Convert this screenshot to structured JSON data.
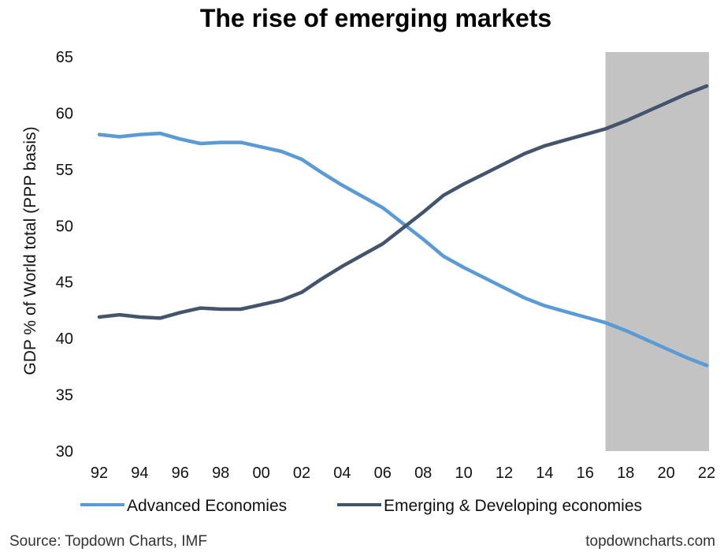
{
  "chart_data": {
    "type": "line",
    "title": "The rise of emerging markets",
    "ylabel": "GDP % of World total (PPP basis)",
    "xlabel": "",
    "ylim": [
      30,
      65
    ],
    "yticks": [
      "30",
      "35",
      "40",
      "45",
      "50",
      "55",
      "60",
      "65"
    ],
    "xlim": [
      1992,
      2022
    ],
    "xticks": [
      {
        "year": 1992,
        "label": "92"
      },
      {
        "year": 1994,
        "label": "94"
      },
      {
        "year": 1996,
        "label": "96"
      },
      {
        "year": 1998,
        "label": "98"
      },
      {
        "year": 2000,
        "label": "00"
      },
      {
        "year": 2002,
        "label": "02"
      },
      {
        "year": 2004,
        "label": "04"
      },
      {
        "year": 2006,
        "label": "06"
      },
      {
        "year": 2008,
        "label": "08"
      },
      {
        "year": 2010,
        "label": "10"
      },
      {
        "year": 2012,
        "label": "12"
      },
      {
        "year": 2014,
        "label": "14"
      },
      {
        "year": 2016,
        "label": "16"
      },
      {
        "year": 2018,
        "label": "18"
      },
      {
        "year": 2020,
        "label": "20"
      },
      {
        "year": 2022,
        "label": "22"
      }
    ],
    "x": [
      1992,
      1993,
      1994,
      1995,
      1996,
      1997,
      1998,
      1999,
      2000,
      2001,
      2002,
      2003,
      2004,
      2005,
      2006,
      2007,
      2008,
      2009,
      2010,
      2011,
      2012,
      2013,
      2014,
      2015,
      2016,
      2017,
      2018,
      2019,
      2020,
      2021,
      2022
    ],
    "series": [
      {
        "name": "Advanced Economies",
        "color": "#5b9bd5",
        "values": [
          58.1,
          57.9,
          58.1,
          58.2,
          57.7,
          57.3,
          57.4,
          57.4,
          57.0,
          56.6,
          55.9,
          54.7,
          53.6,
          52.6,
          51.6,
          50.2,
          48.8,
          47.3,
          46.3,
          45.4,
          44.5,
          43.6,
          42.9,
          42.4,
          41.9,
          41.4,
          40.7,
          39.9,
          39.1,
          38.3,
          37.6
        ]
      },
      {
        "name": "Emerging & Developing economies",
        "color": "#44546a",
        "values": [
          41.9,
          42.1,
          41.9,
          41.8,
          42.3,
          42.7,
          42.6,
          42.6,
          43.0,
          43.4,
          44.1,
          45.3,
          46.4,
          47.4,
          48.4,
          49.8,
          51.2,
          52.7,
          53.7,
          54.6,
          55.5,
          56.4,
          57.1,
          57.6,
          58.1,
          58.6,
          59.3,
          60.1,
          60.9,
          61.7,
          62.4
        ]
      }
    ],
    "shaded_region": {
      "x_start": 2017,
      "x_end": 2022.5,
      "color": "#c3c3c3"
    },
    "legend_position": "bottom",
    "grid": false
  },
  "footer": {
    "source": "Source: Topdown Charts, IMF",
    "website": "topdowncharts.com"
  }
}
